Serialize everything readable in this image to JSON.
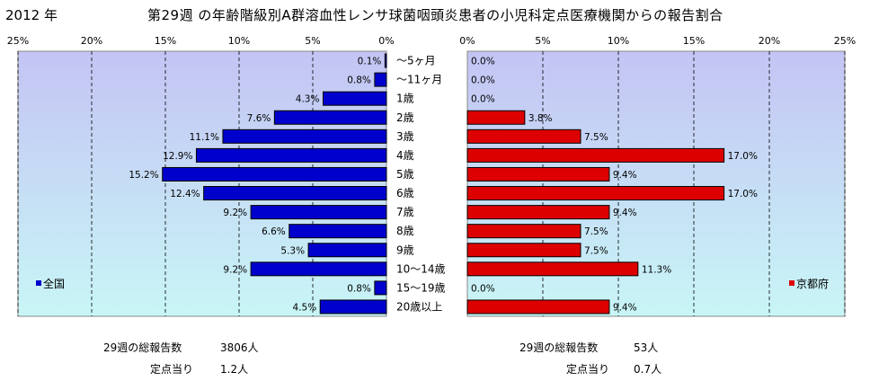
{
  "header": {
    "year": "2012 年",
    "title": "第29週 の年齢階級別A群溶血性レンサ球菌咽頭炎患者の小児科定点医療機関からの報告割合"
  },
  "chart_data": {
    "type": "bar",
    "orientation": "horizontal",
    "categories": [
      "～5ヶ月",
      "～11ヶ月",
      "1歳",
      "2歳",
      "3歳",
      "4歳",
      "5歳",
      "6歳",
      "7歳",
      "8歳",
      "9歳",
      "10～14歳",
      "15～19歳",
      "20歳以上"
    ],
    "x_ticks": [
      "0%",
      "5%",
      "10%",
      "15%",
      "20%",
      "25%"
    ],
    "xlim": [
      0,
      25
    ],
    "grid": true,
    "series": [
      {
        "name": "全国",
        "side": "left",
        "color": "#0000cc",
        "values": [
          0.1,
          0.8,
          4.3,
          7.6,
          11.1,
          12.9,
          15.2,
          12.4,
          9.2,
          6.6,
          5.3,
          9.2,
          0.8,
          4.5
        ],
        "labels": [
          "0.1%",
          "0.8%",
          "4.3%",
          "7.6%",
          "11.1%",
          "12.9%",
          "15.2%",
          "12.4%",
          "9.2%",
          "6.6%",
          "5.3%",
          "9.2%",
          "0.8%",
          "4.5%"
        ],
        "legend_position": "bottom-left"
      },
      {
        "name": "京都府",
        "side": "right",
        "color": "#dd0000",
        "values": [
          0.0,
          0.0,
          0.0,
          3.8,
          7.5,
          17.0,
          9.4,
          17.0,
          9.4,
          7.5,
          7.5,
          11.3,
          0.0,
          9.4
        ],
        "labels": [
          "0.0%",
          "0.0%",
          "0.0%",
          "3.8%",
          "7.5%",
          "17.0%",
          "9.4%",
          "17.0%",
          "9.4%",
          "7.5%",
          "7.5%",
          "11.3%",
          "0.0%",
          "9.4%"
        ],
        "legend_position": "bottom-right"
      }
    ]
  },
  "footer": {
    "left": {
      "total_label": "29週の総報告数",
      "total_value": "3806人",
      "per_label": "定点当り",
      "per_value": "1.2人"
    },
    "right": {
      "total_label": "29週の総報告数",
      "total_value": "53人",
      "per_label": "定点当り",
      "per_value": "0.7人"
    }
  }
}
